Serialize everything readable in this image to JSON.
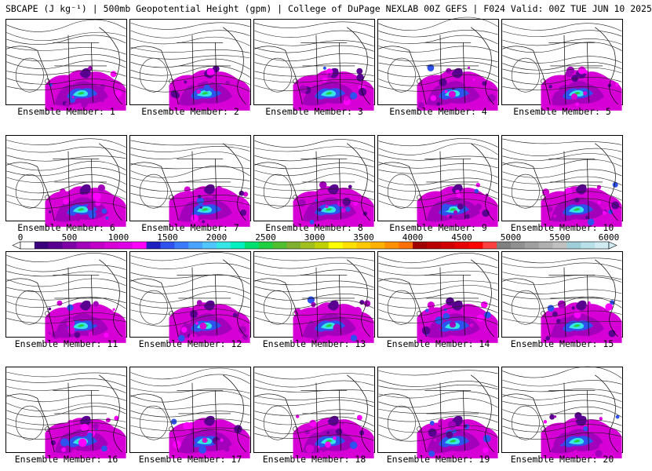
{
  "header": {
    "title": "SBCAPE (J kg⁻¹) | 500mb Geopotential Height (gpm) | College of DuPage NEXLAB 00Z GEFS | F024 Valid: 00Z TUE JUN 10 2025"
  },
  "colorbar": {
    "ticks": [
      "0",
      "500",
      "1000",
      "1500",
      "2000",
      "2500",
      "3000",
      "3500",
      "4000",
      "4500",
      "5000",
      "5500",
      "6000"
    ],
    "colors": [
      "#ffffff",
      "#3a007a",
      "#5a0091",
      "#7d00a6",
      "#a300bb",
      "#c100c8",
      "#d600d6",
      "#e000e8",
      "#ff00ff",
      "#2020c0",
      "#2f52ee",
      "#3b7cff",
      "#4aa3ff",
      "#4fc6ff",
      "#36e6e6",
      "#00f0c0",
      "#00e070",
      "#20d040",
      "#50c030",
      "#80b030",
      "#a0c020",
      "#c0d000",
      "#ffff00",
      "#ffe000",
      "#ffc800",
      "#ffb000",
      "#ff9000",
      "#ff7000",
      "#a00000",
      "#b80000",
      "#d00000",
      "#e80000",
      "#ff0000",
      "#ff4040",
      "#808080",
      "#909090",
      "#a0a0a0",
      "#b0b0b0",
      "#c0c0c0",
      "#9ecfd8",
      "#b8e0e8",
      "#d0ecf2"
    ]
  },
  "members": [
    {
      "label": "Ensemble Member: 1"
    },
    {
      "label": "Ensemble Member: 2"
    },
    {
      "label": "Ensemble Member: 3"
    },
    {
      "label": "Ensemble Member: 4"
    },
    {
      "label": "Ensemble Member: 5"
    },
    {
      "label": "Ensemble Member: 6"
    },
    {
      "label": "Ensemble Member: 7"
    },
    {
      "label": "Ensemble Member: 8"
    },
    {
      "label": "Ensemble Member: 9"
    },
    {
      "label": "Ensemble Member: 10"
    },
    {
      "label": "Ensemble Member: 11"
    },
    {
      "label": "Ensemble Member: 12"
    },
    {
      "label": "Ensemble Member: 13"
    },
    {
      "label": "Ensemble Member: 14"
    },
    {
      "label": "Ensemble Member: 15"
    },
    {
      "label": "Ensemble Member: 16"
    },
    {
      "label": "Ensemble Member: 17"
    },
    {
      "label": "Ensemble Member: 18"
    },
    {
      "label": "Ensemble Member: 19"
    },
    {
      "label": "Ensemble Member: 20"
    }
  ]
}
